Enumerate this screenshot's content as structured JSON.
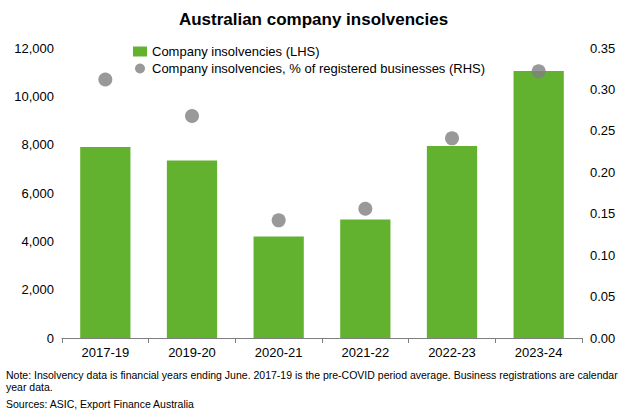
{
  "chart_data": {
    "type": "bar",
    "title": "Australian company insolvencies",
    "categories": [
      "2017-19",
      "2019-20",
      "2020-21",
      "2021-22",
      "2022-23",
      "2023-24"
    ],
    "series": [
      {
        "name": "Company insolvencies (LHS)",
        "type": "bar",
        "color": "#63b22f",
        "values": [
          7900,
          7350,
          4200,
          4900,
          7950,
          11050
        ]
      },
      {
        "name": "Company insolvencies, % of registered businesses (RHS)",
        "type": "scatter",
        "marker": "circle",
        "color": "#808080",
        "axis": "y2",
        "values": [
          0.312,
          0.268,
          0.142,
          0.156,
          0.241,
          0.322
        ]
      }
    ],
    "ylim": [
      0,
      12000
    ],
    "yticks": [
      0,
      {
        "value": 2000,
        "label": "2,000"
      },
      {
        "value": 4000,
        "label": "4,000"
      },
      {
        "value": 6000,
        "label": "6,000"
      },
      {
        "value": 8000,
        "label": "8,000"
      },
      {
        "value": 10000,
        "label": "10,000"
      },
      {
        "value": 12000,
        "label": "12,000"
      }
    ],
    "y2lim": [
      0,
      0.35
    ],
    "y2ticks": [
      {
        "value": 0,
        "label": "0.00"
      },
      0.05,
      {
        "value": 0.1,
        "label": "0.10"
      },
      0.15,
      {
        "value": 0.2,
        "label": "0.20"
      },
      0.25,
      {
        "value": 0.3,
        "label": "0.30"
      },
      0.35
    ],
    "grid": false,
    "legend": "upper-left",
    "note": "Note: Insolvency data is financial years ending June. 2017-19 is the pre-COVID period average. Business registrations are calendar year data.",
    "source": "Sources: ASIC, Export Finance Australia"
  }
}
